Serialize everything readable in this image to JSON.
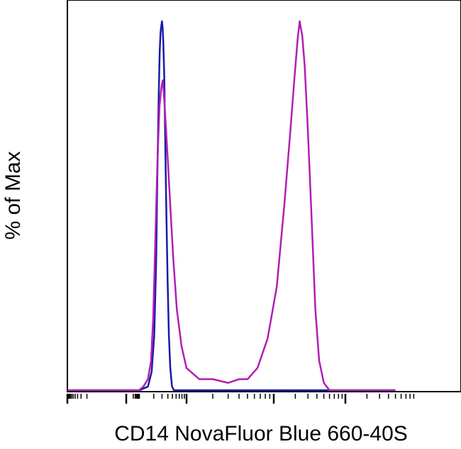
{
  "chart_data": {
    "type": "line",
    "title": "",
    "xlabel": "CD14 NovaFluor Blue 660-40S",
    "ylabel": "% of Max",
    "x_scale": "log (biexponential)",
    "xlim": [
      -1000,
      500000
    ],
    "ylim": [
      0,
      100
    ],
    "grid": false,
    "legend": "none",
    "series": [
      {
        "color": "#1a1aa6",
        "points": [
          [
            -1000,
            0
          ],
          [
            100,
            0
          ],
          [
            150,
            1
          ],
          [
            180,
            5
          ],
          [
            205,
            15
          ],
          [
            225,
            35
          ],
          [
            240,
            60
          ],
          [
            255,
            80
          ],
          [
            268,
            92
          ],
          [
            280,
            97
          ],
          [
            292,
            99
          ],
          [
            300,
            100
          ],
          [
            310,
            98
          ],
          [
            320,
            94
          ],
          [
            335,
            85
          ],
          [
            350,
            70
          ],
          [
            370,
            50
          ],
          [
            395,
            30
          ],
          [
            420,
            15
          ],
          [
            450,
            6
          ],
          [
            490,
            1
          ],
          [
            540,
            0
          ],
          [
            500000,
            0
          ]
        ]
      },
      {
        "color": "#b01fb3",
        "points": [
          [
            -1000,
            0
          ],
          [
            80,
            0
          ],
          [
            120,
            1
          ],
          [
            150,
            3
          ],
          [
            175,
            8
          ],
          [
            195,
            20
          ],
          [
            215,
            40
          ],
          [
            240,
            62
          ],
          [
            265,
            77
          ],
          [
            290,
            82
          ],
          [
            310,
            84
          ],
          [
            330,
            80
          ],
          [
            360,
            72
          ],
          [
            400,
            62
          ],
          [
            450,
            50
          ],
          [
            520,
            36
          ],
          [
            620,
            22
          ],
          [
            780,
            12
          ],
          [
            1000,
            6
          ],
          [
            1400,
            3
          ],
          [
            2000,
            3
          ],
          [
            3000,
            2
          ],
          [
            4000,
            3
          ],
          [
            5000,
            3
          ],
          [
            6500,
            6
          ],
          [
            8500,
            14
          ],
          [
            11000,
            28
          ],
          [
            14000,
            50
          ],
          [
            17000,
            70
          ],
          [
            19500,
            85
          ],
          [
            21500,
            95
          ],
          [
            23000,
            100
          ],
          [
            25000,
            96
          ],
          [
            27000,
            88
          ],
          [
            30000,
            70
          ],
          [
            34000,
            45
          ],
          [
            38000,
            22
          ],
          [
            43000,
            8
          ],
          [
            50000,
            2
          ],
          [
            60000,
            0
          ],
          [
            500000,
            0
          ]
        ]
      }
    ]
  }
}
